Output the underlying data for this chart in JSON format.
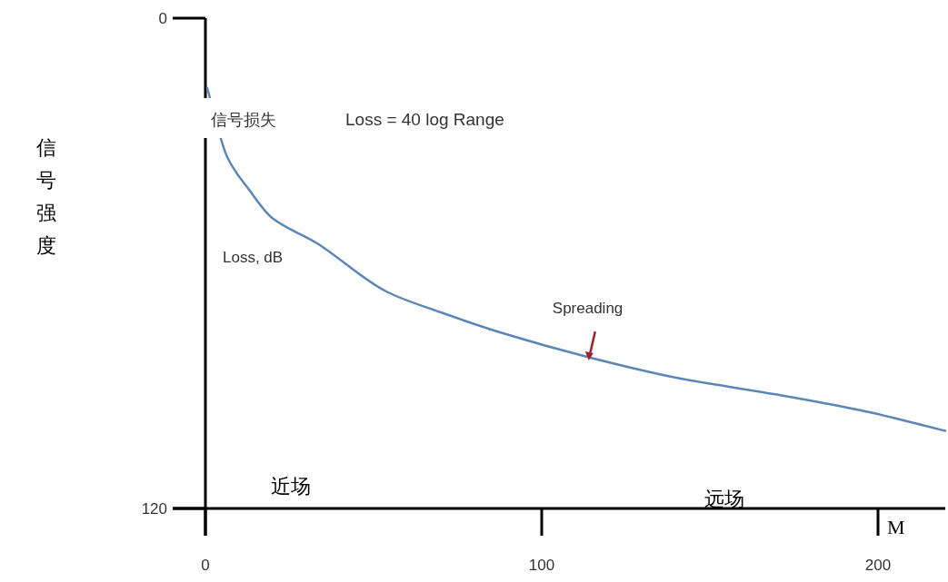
{
  "chart_data": {
    "type": "line",
    "ylabel": "信号强度",
    "xlabel": "M",
    "x": [
      0.5,
      6.5,
      13,
      20,
      33,
      54,
      70,
      88,
      114,
      140,
      169,
      195,
      220
    ],
    "series": [
      {
        "color": "#5b86b5",
        "values": [
          17,
          34,
          42,
          49,
          55,
          67,
          72,
          77,
          83,
          88,
          92,
          96,
          101
        ]
      }
    ],
    "xlim": [
      0,
      220
    ],
    "ylim": [
      120,
      0
    ],
    "xticks": [
      0,
      100,
      200
    ],
    "yticks": [
      0,
      120
    ],
    "annotations": [
      "信号损失",
      "Loss = 40 log Range",
      "Loss, dB",
      {
        "text": "Spreading",
        "x": 114,
        "y": 83.8
      },
      "近场",
      "远场"
    ]
  }
}
